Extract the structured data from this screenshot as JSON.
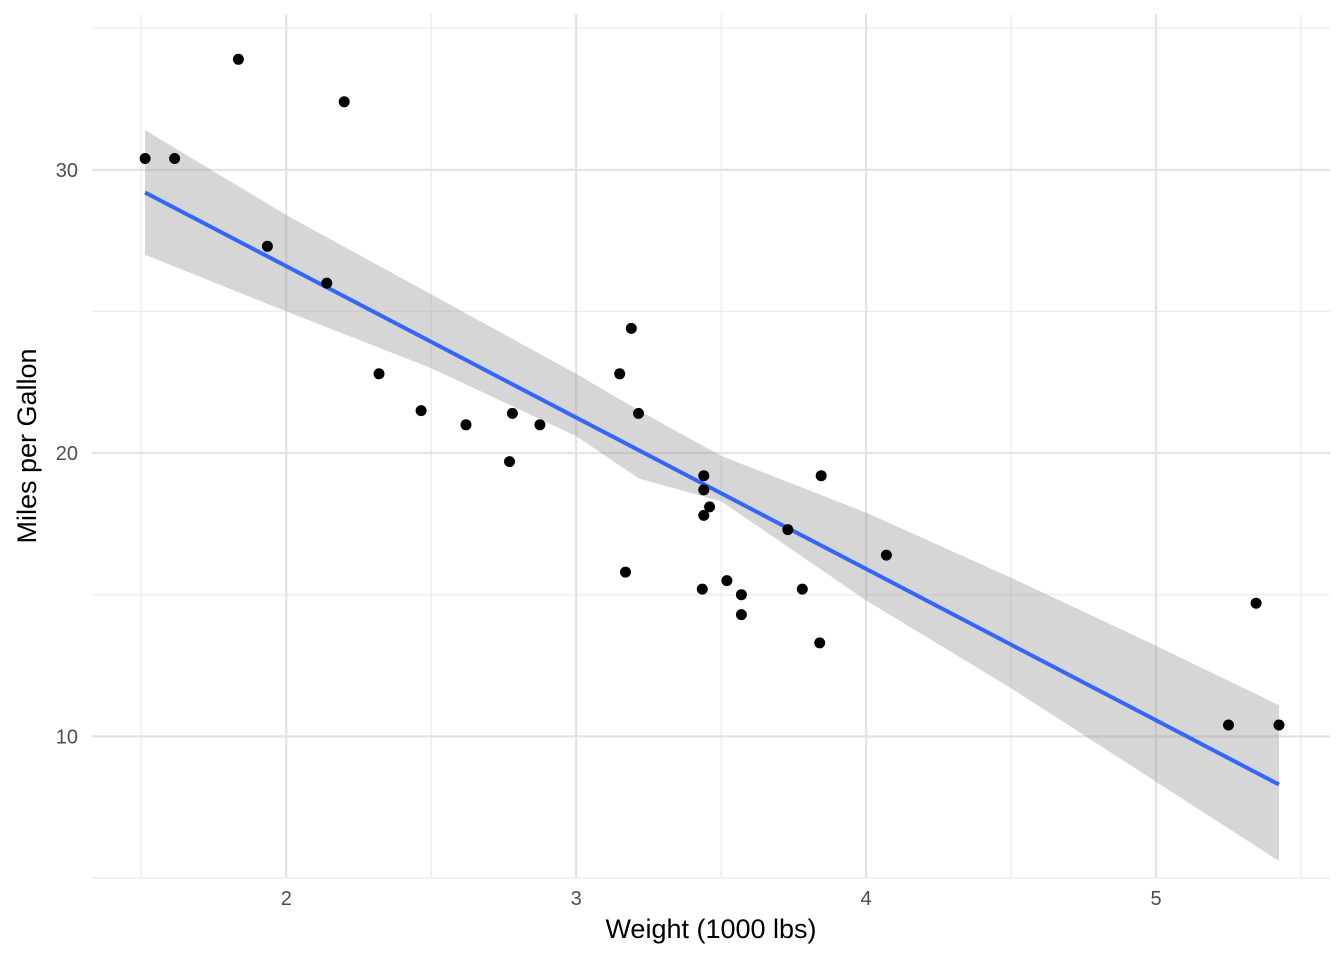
{
  "chart_data": {
    "type": "scatter",
    "title": "",
    "xlabel": "Weight (1000 lbs)",
    "ylabel": "Miles per Gallon",
    "xlim": [
      1.33,
      5.6
    ],
    "ylim": [
      5.0,
      35.5
    ],
    "x_ticks": [
      2,
      3,
      4,
      5
    ],
    "x_tick_labels": [
      "2",
      "3",
      "4",
      "5"
    ],
    "y_ticks": [
      10,
      20,
      30
    ],
    "y_tick_labels": [
      "10",
      "20",
      "30"
    ],
    "x_minor_ticks": [
      1.5,
      2.5,
      3.5,
      4.5,
      5.5
    ],
    "y_minor_ticks": [
      5,
      15,
      25,
      35
    ],
    "grid": true,
    "point_color": "#000000",
    "line_color": "#3366FF",
    "band_color": "#999999",
    "points": [
      {
        "x": 1.513,
        "y": 30.4
      },
      {
        "x": 1.615,
        "y": 30.4
      },
      {
        "x": 1.835,
        "y": 33.9
      },
      {
        "x": 1.935,
        "y": 27.3
      },
      {
        "x": 2.14,
        "y": 26.0
      },
      {
        "x": 2.2,
        "y": 32.4
      },
      {
        "x": 2.32,
        "y": 22.8
      },
      {
        "x": 2.465,
        "y": 21.5
      },
      {
        "x": 2.62,
        "y": 21.0
      },
      {
        "x": 2.77,
        "y": 19.7
      },
      {
        "x": 2.78,
        "y": 21.4
      },
      {
        "x": 2.875,
        "y": 21.0
      },
      {
        "x": 3.15,
        "y": 22.8
      },
      {
        "x": 3.17,
        "y": 15.8
      },
      {
        "x": 3.19,
        "y": 24.4
      },
      {
        "x": 3.215,
        "y": 21.4
      },
      {
        "x": 3.435,
        "y": 15.2
      },
      {
        "x": 3.44,
        "y": 18.7
      },
      {
        "x": 3.44,
        "y": 17.8
      },
      {
        "x": 3.44,
        "y": 19.2
      },
      {
        "x": 3.46,
        "y": 18.1
      },
      {
        "x": 3.52,
        "y": 15.5
      },
      {
        "x": 3.57,
        "y": 15.0
      },
      {
        "x": 3.57,
        "y": 14.3
      },
      {
        "x": 3.73,
        "y": 17.3
      },
      {
        "x": 3.78,
        "y": 15.2
      },
      {
        "x": 3.84,
        "y": 13.3
      },
      {
        "x": 3.845,
        "y": 19.2
      },
      {
        "x": 4.07,
        "y": 16.4
      },
      {
        "x": 5.25,
        "y": 10.4
      },
      {
        "x": 5.345,
        "y": 14.7
      },
      {
        "x": 5.424,
        "y": 10.4
      }
    ],
    "fit_line": {
      "x": [
        1.513,
        5.424
      ],
      "y": [
        29.2,
        8.3
      ]
    },
    "confidence_band": {
      "x": [
        1.513,
        2.0,
        2.5,
        3.0,
        3.217,
        3.5,
        4.0,
        4.5,
        5.0,
        5.424
      ],
      "upper": [
        31.4,
        28.4,
        25.6,
        22.8,
        21.5,
        19.9,
        17.9,
        15.6,
        13.2,
        11.1
      ],
      "lower": [
        27.0,
        25.0,
        23.0,
        20.6,
        19.1,
        18.3,
        14.8,
        11.7,
        8.4,
        5.6
      ]
    }
  }
}
